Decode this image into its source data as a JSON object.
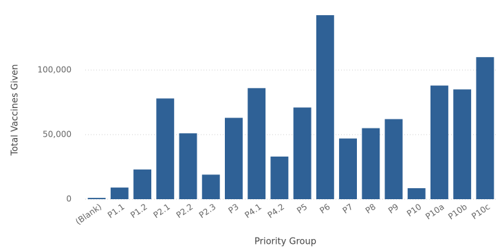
{
  "chart_data": {
    "type": "bar",
    "x_label": "Priority Group",
    "y_label": "Total Vaccines Given",
    "categories": [
      "(Blank)",
      "P1.1",
      "P1.2",
      "P2.1",
      "P2.2",
      "P2.3",
      "P3",
      "P4.1",
      "P4.2",
      "P5",
      "P6",
      "P7",
      "P8",
      "P9",
      "P10",
      "P10a",
      "P10b",
      "P10c"
    ],
    "values": [
      1000,
      9000,
      23000,
      78000,
      51000,
      19000,
      63000,
      86000,
      33000,
      71000,
      142500,
      47000,
      55000,
      62000,
      8500,
      88000,
      85000,
      110000
    ],
    "color": "#2f6196",
    "ylim": [
      0,
      150000
    ],
    "yticks": [
      0,
      {
        "value": 50000,
        "label": "50,000"
      },
      {
        "value": 100000,
        "label": "100,000"
      }
    ],
    "grid": true
  }
}
